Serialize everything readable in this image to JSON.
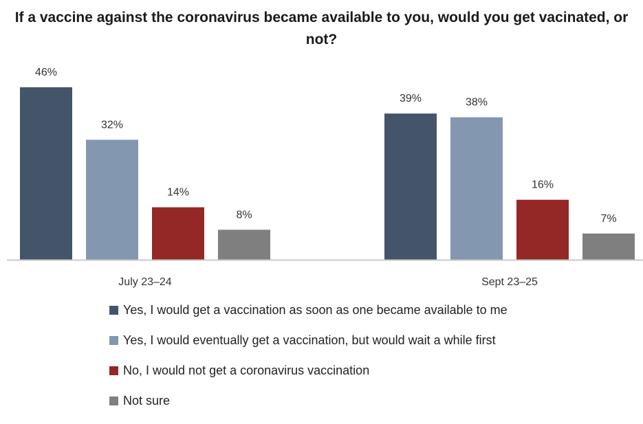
{
  "chart_data": {
    "type": "bar",
    "title": "If a vaccine against the coronavirus became available to you, would you get vacinated, or not?",
    "categories": [
      "July 23–24",
      "Sept 23–25"
    ],
    "series": [
      {
        "name": "Yes, I would get a vaccination as soon as one became available to me",
        "values": [
          46,
          39
        ],
        "labels": [
          "46%",
          "39%"
        ],
        "color": "#44546a"
      },
      {
        "name": "Yes, I would eventually get a vaccination, but would wait a while first",
        "values": [
          32,
          38
        ],
        "labels": [
          "32%",
          "38%"
        ],
        "color": "#8497b0"
      },
      {
        "name": "No, I would not get a coronavirus vaccination",
        "values": [
          14,
          16
        ],
        "labels": [
          "14%",
          "16%"
        ],
        "color": "#932826"
      },
      {
        "name": "Not sure",
        "values": [
          8,
          7
        ],
        "labels": [
          "8%",
          "7%"
        ],
        "color": "#7f7f7f"
      }
    ],
    "ylim": [
      0,
      46
    ],
    "grid": false,
    "legend_position": "bottom"
  }
}
